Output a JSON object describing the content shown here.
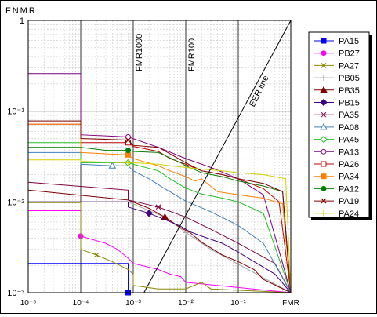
{
  "chart_data": {
    "type": "line",
    "title": "",
    "xlabel": "FMR",
    "ylabel": "FNMR",
    "x_scale": "log",
    "y_scale": "log",
    "xlim": [
      1e-05,
      1
    ],
    "ylim": [
      0.001,
      1
    ],
    "grid": true,
    "legend_position": "right",
    "x_ticks": [
      "10⁻⁵",
      "10⁻⁴",
      "10⁻³",
      "10⁻²",
      "10⁻¹",
      "FMR"
    ],
    "y_ticks": [
      "1",
      "10⁻¹",
      "10⁻²",
      "10⁻³"
    ],
    "annotations": [
      {
        "label": "FMR1000",
        "x": 0.001
      },
      {
        "label": "FMR100",
        "x": 0.01
      },
      {
        "label": "EER line"
      }
    ],
    "series": [
      {
        "name": "PA15",
        "color": "#0000ff",
        "marker": "square",
        "x": [
          1e-05,
          1e-05,
          0.0008,
          0.0008,
          0.001,
          0.001,
          1
        ],
        "y": [
          0.01,
          0.0021,
          0.0021,
          0.001,
          0.001,
          0.001,
          0.001
        ]
      },
      {
        "name": "PB27",
        "color": "#ff00ff",
        "marker": "circle",
        "x": [
          1e-05,
          1e-05,
          0.0001,
          0.0001,
          0.0003,
          0.0005,
          0.0008,
          0.001,
          0.003,
          0.005,
          0.008,
          0.01,
          1
        ],
        "y": [
          0.26,
          0.008,
          0.008,
          0.0042,
          0.0035,
          0.003,
          0.0024,
          0.0021,
          0.0018,
          0.0016,
          0.0015,
          0.0013,
          0.001
        ]
      },
      {
        "name": "PA27",
        "color": "#888800",
        "marker": "x",
        "x": [
          1e-05,
          0.0001,
          0.0001,
          0.0002,
          0.0004,
          0.0008,
          0.001,
          0.001,
          0.003,
          0.005,
          0.01,
          0.02,
          0.03,
          1
        ],
        "y": [
          0.0098,
          0.0098,
          0.003,
          0.0026,
          0.0022,
          0.0018,
          0.0016,
          0.0012,
          0.0011,
          0.0011,
          0.0011,
          0.0013,
          0.0011,
          0.001
        ]
      },
      {
        "name": "PB05",
        "color": "#aaaaaa",
        "marker": "plus",
        "x": [
          1e-05,
          0.0008,
          0.004,
          0.01,
          0.03,
          1
        ],
        "y": [
          0.01,
          0.01,
          0.0068,
          0.0046,
          0.003,
          0.001
        ]
      },
      {
        "name": "PB35",
        "color": "#800000",
        "marker": "triangle",
        "x": [
          1e-05,
          0.0008,
          0.002,
          0.004,
          0.008,
          0.012,
          0.02,
          0.05,
          0.1,
          0.2,
          0.3,
          1
        ],
        "y": [
          0.0135,
          0.0105,
          0.0085,
          0.0068,
          0.0052,
          0.0046,
          0.0036,
          0.0026,
          0.0022,
          0.0018,
          0.0014,
          0.001
        ]
      },
      {
        "name": "PB15",
        "color": "#400080",
        "marker": "diamond",
        "x": [
          1e-05,
          0.0008,
          0.0008,
          0.002,
          0.004,
          0.008,
          0.012,
          0.02,
          0.05,
          0.1,
          0.2,
          0.5,
          1
        ],
        "y": [
          0.01,
          0.01,
          0.0088,
          0.0075,
          0.0064,
          0.0054,
          0.0047,
          0.0042,
          0.0035,
          0.0028,
          0.0022,
          0.0016,
          0.001
        ]
      },
      {
        "name": "PA35",
        "color": "#800040",
        "marker": "star",
        "x": [
          1e-05,
          0.0008,
          0.0008,
          0.003,
          0.01,
          0.03,
          0.1,
          0.5,
          1
        ],
        "y": [
          0.0165,
          0.0135,
          0.0105,
          0.0088,
          0.0068,
          0.005,
          0.0035,
          0.0021,
          0.001
        ]
      },
      {
        "name": "PA08",
        "color": "#4080c0",
        "marker": "triangle-open",
        "x": [
          1e-05,
          0.0001,
          0.0001,
          0.0004,
          0.0008,
          0.001,
          0.002,
          0.004,
          0.01,
          0.03,
          0.1,
          0.3,
          1
        ],
        "y": [
          0.035,
          0.035,
          0.026,
          0.025,
          0.025,
          0.022,
          0.018,
          0.014,
          0.0102,
          0.0078,
          0.0055,
          0.0035,
          0.001
        ]
      },
      {
        "name": "PA45",
        "color": "#20c020",
        "marker": "diamond-open",
        "x": [
          1e-05,
          0.0001,
          0.0001,
          0.0008,
          0.001,
          0.003,
          0.005,
          0.01,
          0.02,
          0.05,
          0.1,
          0.3,
          1
        ],
        "y": [
          0.045,
          0.045,
          0.027,
          0.027,
          0.026,
          0.022,
          0.018,
          0.0142,
          0.0122,
          0.011,
          0.01,
          0.0075,
          0.001
        ]
      },
      {
        "name": "PA13",
        "color": "#800080",
        "marker": "circle-open",
        "x": [
          1e-05,
          0.0001,
          0.0001,
          0.0008,
          0.003,
          0.01,
          0.03,
          0.1,
          0.3,
          1
        ],
        "y": [
          0.26,
          0.26,
          0.055,
          0.052,
          0.04,
          0.03,
          0.024,
          0.018,
          0.012,
          0.001
        ]
      },
      {
        "name": "PA26",
        "color": "#c00000",
        "marker": "square-open",
        "x": [
          1e-05,
          0.0001,
          0.0001,
          0.0008,
          0.001,
          0.003,
          0.005,
          0.01,
          0.02,
          0.05,
          0.1,
          0.3,
          0.6,
          1
        ],
        "y": [
          0.072,
          0.072,
          0.045,
          0.045,
          0.041,
          0.036,
          0.03,
          0.026,
          0.022,
          0.02,
          0.018,
          0.014,
          0.01,
          0.001
        ]
      },
      {
        "name": "PA34",
        "color": "#ff8000",
        "marker": "square",
        "x": [
          1e-05,
          0.0001,
          0.0001,
          0.0008,
          0.001,
          0.003,
          0.005,
          0.01,
          0.015,
          0.02,
          0.04,
          0.1,
          0.3,
          0.7,
          1
        ],
        "y": [
          0.072,
          0.072,
          0.035,
          0.033,
          0.03,
          0.025,
          0.022,
          0.019,
          0.017,
          0.018,
          0.013,
          0.012,
          0.011,
          0.0095,
          0.001
        ]
      },
      {
        "name": "PA12",
        "color": "#008000",
        "marker": "circle",
        "x": [
          1e-05,
          0.0001,
          0.0003,
          0.0008,
          0.001,
          0.003,
          0.008,
          0.01,
          0.02,
          0.05,
          0.1,
          0.3,
          0.7,
          1
        ],
        "y": [
          0.04,
          0.04,
          0.037,
          0.037,
          0.036,
          0.035,
          0.027,
          0.025,
          0.021,
          0.019,
          0.017,
          0.015,
          0.013,
          0.001
        ]
      },
      {
        "name": "PA19",
        "color": "#800000",
        "marker": "x",
        "x": [
          1e-05,
          0.0001,
          0.0001,
          0.0008,
          0.001,
          0.003,
          0.005,
          0.01,
          0.02,
          0.05,
          0.1,
          0.3,
          0.7,
          1
        ],
        "y": [
          0.078,
          0.078,
          0.05,
          0.048,
          0.042,
          0.04,
          0.034,
          0.027,
          0.022,
          0.02,
          0.018,
          0.016,
          0.013,
          0.001
        ]
      },
      {
        "name": "PA24",
        "color": "#d0d000",
        "marker": "plus",
        "x": [
          1e-05,
          0.0001,
          0.0001,
          0.0008,
          0.001,
          0.003,
          0.005,
          0.01,
          0.02,
          0.05,
          0.1,
          0.3,
          0.8,
          1
        ],
        "y": [
          0.029,
          0.029,
          0.028,
          0.027,
          0.027,
          0.026,
          0.025,
          0.024,
          0.023,
          0.022,
          0.021,
          0.02,
          0.018,
          0.001
        ]
      }
    ]
  }
}
